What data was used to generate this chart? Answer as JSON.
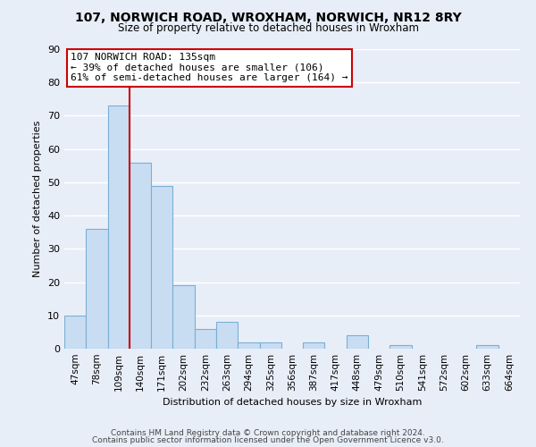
{
  "title": "107, NORWICH ROAD, WROXHAM, NORWICH, NR12 8RY",
  "subtitle": "Size of property relative to detached houses in Wroxham",
  "xlabel": "Distribution of detached houses by size in Wroxham",
  "ylabel": "Number of detached properties",
  "bin_labels": [
    "47sqm",
    "78sqm",
    "109sqm",
    "140sqm",
    "171sqm",
    "202sqm",
    "232sqm",
    "263sqm",
    "294sqm",
    "325sqm",
    "356sqm",
    "387sqm",
    "417sqm",
    "448sqm",
    "479sqm",
    "510sqm",
    "541sqm",
    "572sqm",
    "602sqm",
    "633sqm",
    "664sqm"
  ],
  "bar_values": [
    10,
    36,
    73,
    56,
    49,
    19,
    6,
    8,
    2,
    2,
    0,
    2,
    0,
    4,
    0,
    1,
    0,
    0,
    0,
    1,
    0
  ],
  "bar_color": "#c9ddf2",
  "bar_edge_color": "#7aafd4",
  "vline_color": "#cc0000",
  "annotation_title": "107 NORWICH ROAD: 135sqm",
  "annotation_line1": "← 39% of detached houses are smaller (106)",
  "annotation_line2": "61% of semi-detached houses are larger (164) →",
  "annotation_box_facecolor": "#ffffff",
  "annotation_box_edgecolor": "#cc0000",
  "ylim": [
    0,
    90
  ],
  "yticks": [
    0,
    10,
    20,
    30,
    40,
    50,
    60,
    70,
    80,
    90
  ],
  "footer1": "Contains HM Land Registry data © Crown copyright and database right 2024.",
  "footer2": "Contains public sector information licensed under the Open Government Licence v3.0.",
  "fig_facecolor": "#e8eef8",
  "plot_facecolor": "#e8eef8",
  "grid_color": "#ffffff",
  "title_fontsize": 10,
  "subtitle_fontsize": 8.5,
  "ylabel_fontsize": 8,
  "xlabel_fontsize": 8,
  "tick_labelsize": 8,
  "xtick_labelsize": 7.5,
  "footer_fontsize": 6.5,
  "annot_fontsize": 8
}
